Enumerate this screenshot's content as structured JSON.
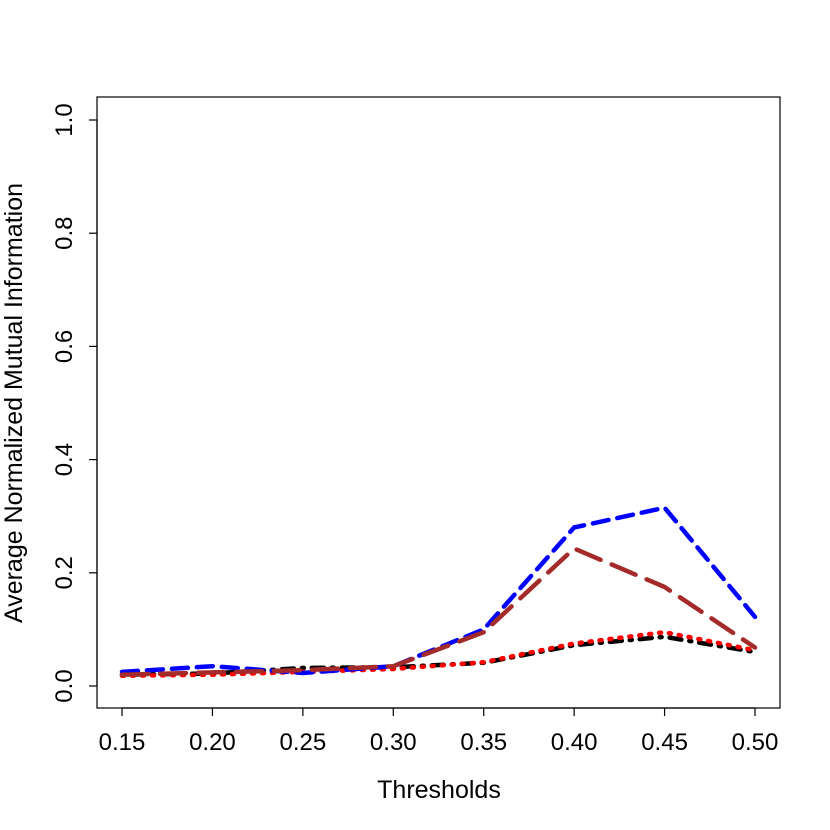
{
  "chart_data": {
    "type": "line",
    "title": "",
    "xlabel": "Thresholds",
    "ylabel": "Average Normalized Mutual Information",
    "xlim": [
      0.15,
      0.5
    ],
    "ylim": [
      0.0,
      1.0
    ],
    "xticks": [
      "0.15",
      "0.20",
      "0.25",
      "0.30",
      "0.35",
      "0.40",
      "0.45",
      "0.50"
    ],
    "yticks": [
      "0.0",
      "0.2",
      "0.4",
      "0.6",
      "0.8",
      "1.0"
    ],
    "grid": false,
    "legend": false,
    "x": [
      0.15,
      0.2,
      0.25,
      0.3,
      0.35,
      0.4,
      0.45,
      0.5
    ],
    "series": [
      {
        "color": "#000000",
        "dash": "dotdash",
        "values": [
          0.02,
          0.022,
          0.032,
          0.033,
          0.041,
          0.072,
          0.087,
          0.06
        ]
      },
      {
        "color": "#ff0000",
        "dash": "dotted",
        "values": [
          0.018,
          0.02,
          0.025,
          0.03,
          0.042,
          0.075,
          0.095,
          0.063
        ]
      },
      {
        "color": "#0000ff",
        "dash": "dashed",
        "values": [
          0.025,
          0.035,
          0.023,
          0.035,
          0.1,
          0.28,
          0.315,
          0.122
        ]
      },
      {
        "color": "#a52a2a",
        "dash": "longdash",
        "values": [
          0.02,
          0.024,
          0.028,
          0.035,
          0.095,
          0.243,
          0.175,
          0.068
        ]
      }
    ]
  }
}
